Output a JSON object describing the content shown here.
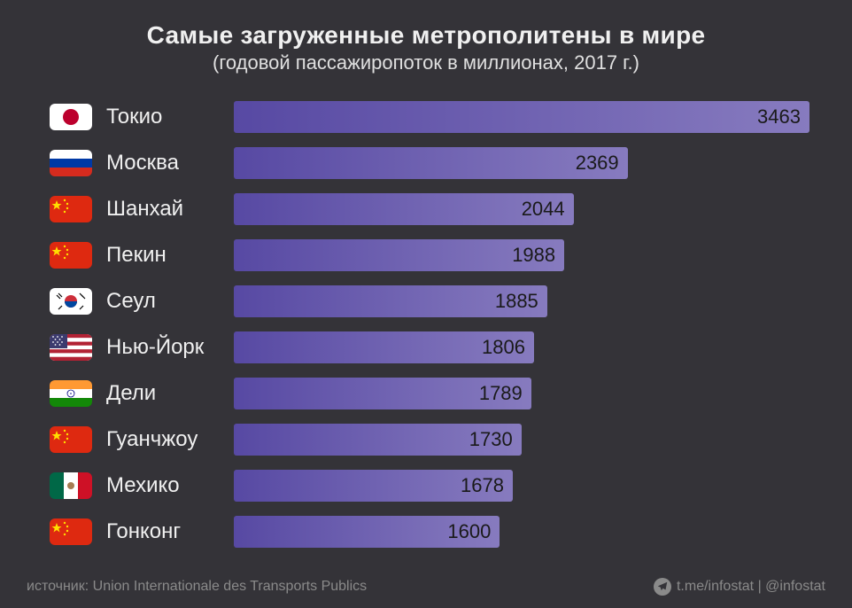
{
  "title": "Самые загруженные метрополитены в мире",
  "subtitle": "(годовой пассажиропоток в миллионах, 2017 г.)",
  "chart": {
    "type": "bar",
    "max_value": 3463,
    "bar_area_width": 650,
    "bar_gradient_start": "#5749a3",
    "bar_gradient_end": "#877bbf",
    "background_color": "#343338",
    "title_fontsize": 28,
    "subtitle_fontsize": 22,
    "label_fontsize": 24,
    "value_fontsize": 22,
    "value_color": "#1a1a1a",
    "label_color": "#f0f0f0",
    "rows": [
      {
        "city": "Токио",
        "value": 3463,
        "flag": "jp"
      },
      {
        "city": "Москва",
        "value": 2369,
        "flag": "ru"
      },
      {
        "city": "Шанхай",
        "value": 2044,
        "flag": "cn"
      },
      {
        "city": "Пекин",
        "value": 1988,
        "flag": "cn"
      },
      {
        "city": "Сеул",
        "value": 1885,
        "flag": "kr"
      },
      {
        "city": "Нью-Йорк",
        "value": 1806,
        "flag": "us"
      },
      {
        "city": "Дели",
        "value": 1789,
        "flag": "in"
      },
      {
        "city": "Гуанчжоу",
        "value": 1730,
        "flag": "cn"
      },
      {
        "city": "Мехико",
        "value": 1678,
        "flag": "mx"
      },
      {
        "city": "Гонконг",
        "value": 1600,
        "flag": "cn"
      }
    ]
  },
  "footer": {
    "source_prefix": "источник: ",
    "source": "Union Internationale des Transports Publics",
    "link": "t.me/infostat | @infostat"
  }
}
